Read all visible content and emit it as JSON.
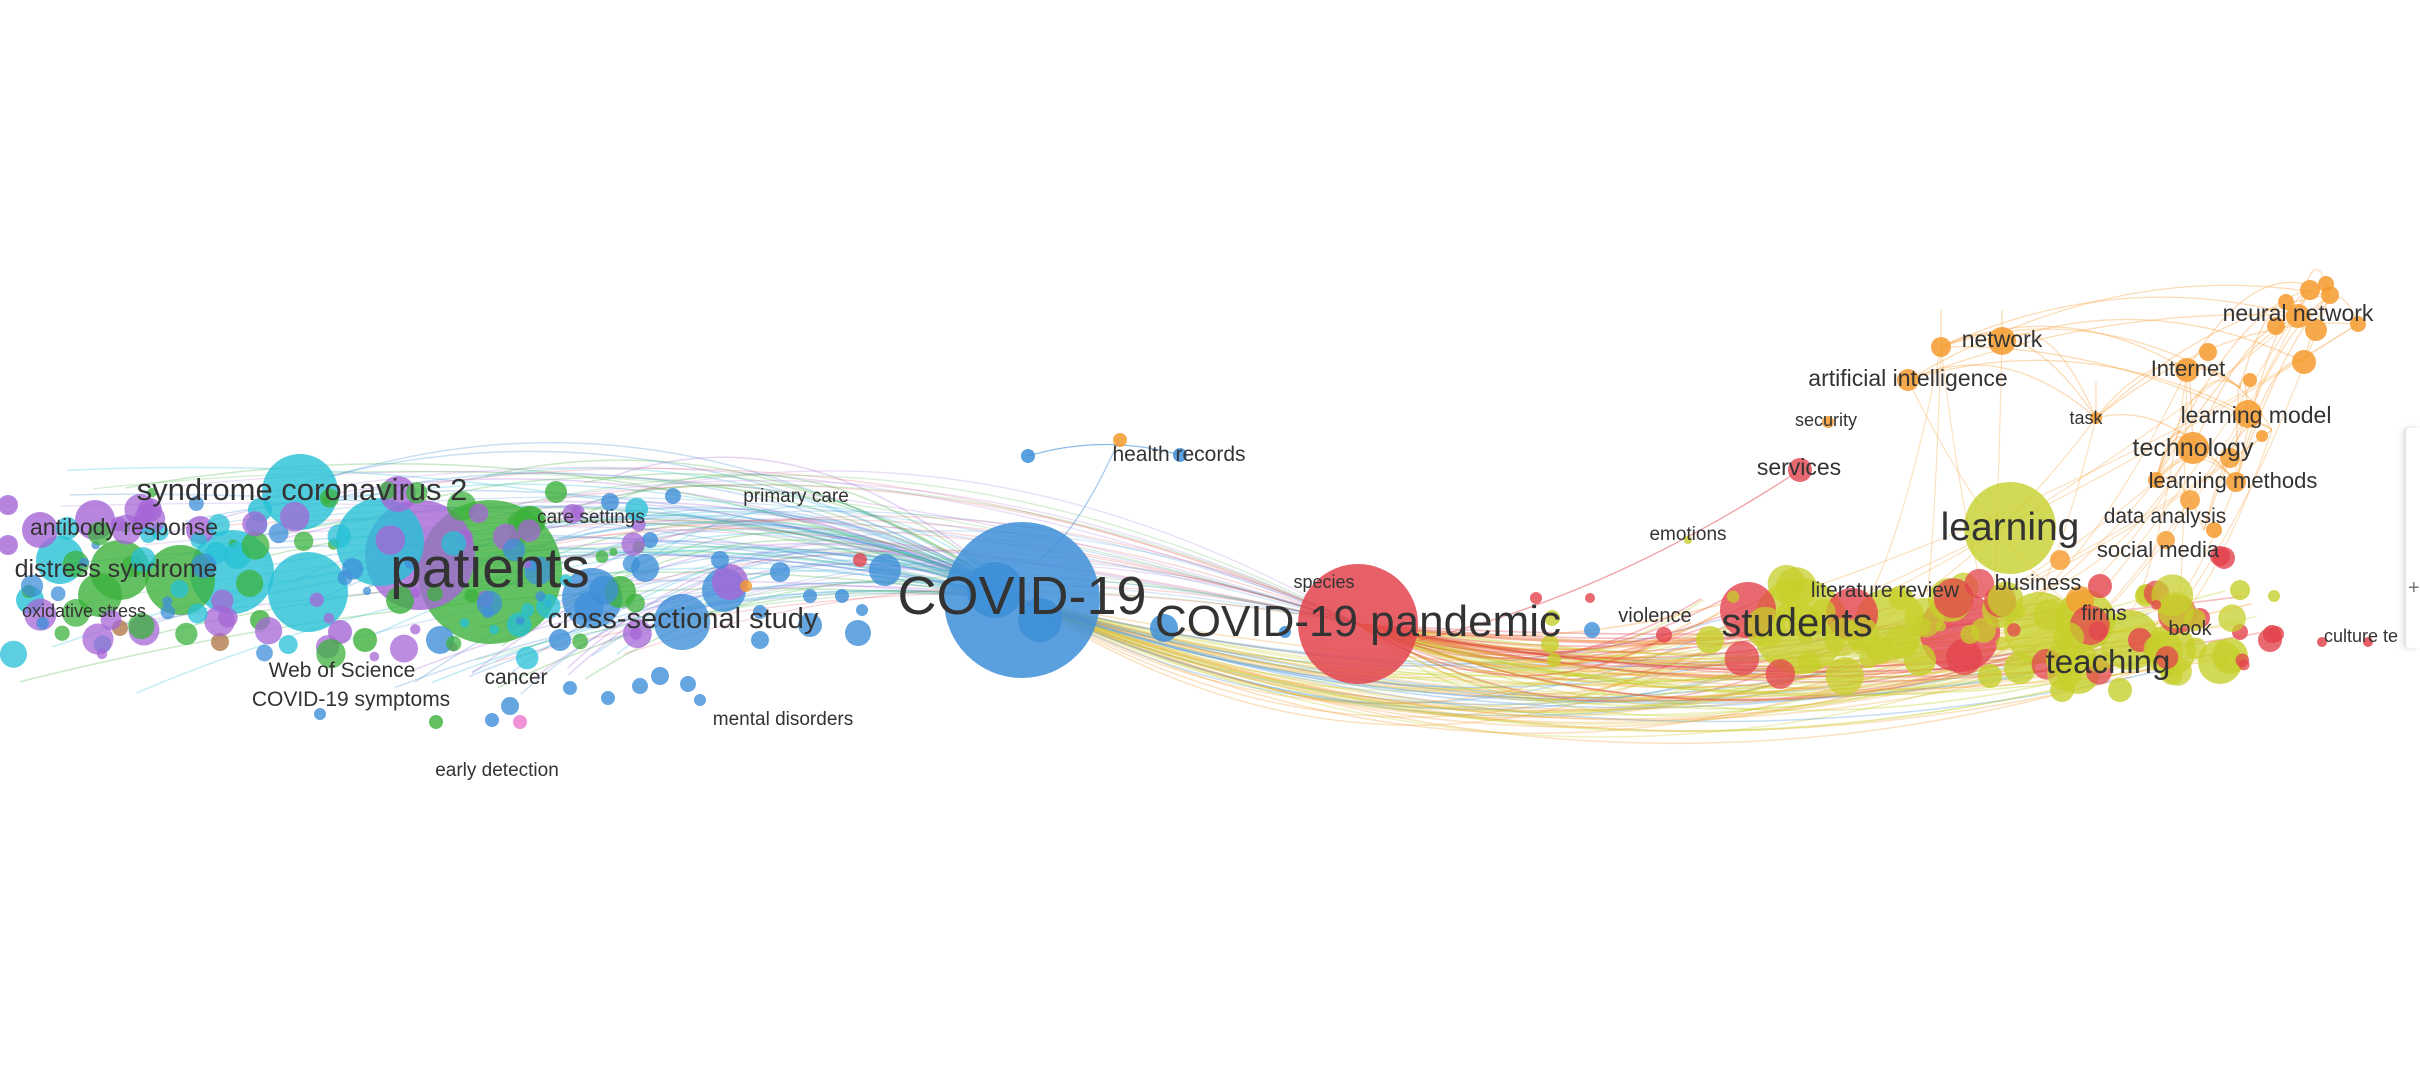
{
  "map": {
    "clusters": {
      "red": "#e3444d",
      "green": "#3cb13c",
      "blue": "#3e8fd8",
      "yellow": "#c7cf2c",
      "purple": "#a566d6",
      "cyan": "#25c0d6",
      "orange": "#f59b2e",
      "brown": "#b07a4c",
      "pink": "#ee77cc"
    },
    "labels": {
      "syndrome_coronavirus_2": "syndrome coronavirus 2",
      "antibody_response": "antibody response",
      "distress_syndrome": "distress syndrome",
      "oxidative_stress": "oxidative stress",
      "patients": "patients",
      "care_settings": "care settings",
      "primary_care": "primary care",
      "cross_sectional_study": "cross-sectional study",
      "web_of_science": "Web of Science",
      "cancer": "cancer",
      "covid19_symptoms": "COVID-19 symptoms",
      "early_detection": "early detection",
      "mental_disorders": "mental disorders",
      "health_records": "health records",
      "covid19": "COVID-19",
      "species": "species",
      "covid19_pandemic": "COVID-19 pandemic",
      "emotions": "emotions",
      "violence": "violence",
      "services": "services",
      "security": "security",
      "artificial_intelligence": "artificial intelligence",
      "network": "network",
      "neural_network": "neural network",
      "internet": "Internet",
      "task": "task",
      "learning_model": "learning model",
      "technology": "technology",
      "learning_methods": "learning methods",
      "data_analysis": "data analysis",
      "social_media": "social media",
      "learning": "learning",
      "literature_review": "literature review",
      "business": "business",
      "students": "students",
      "firms": "firms",
      "book": "book",
      "teaching": "teaching",
      "culture_te": "culture te"
    },
    "side_control_glyph": "+"
  }
}
